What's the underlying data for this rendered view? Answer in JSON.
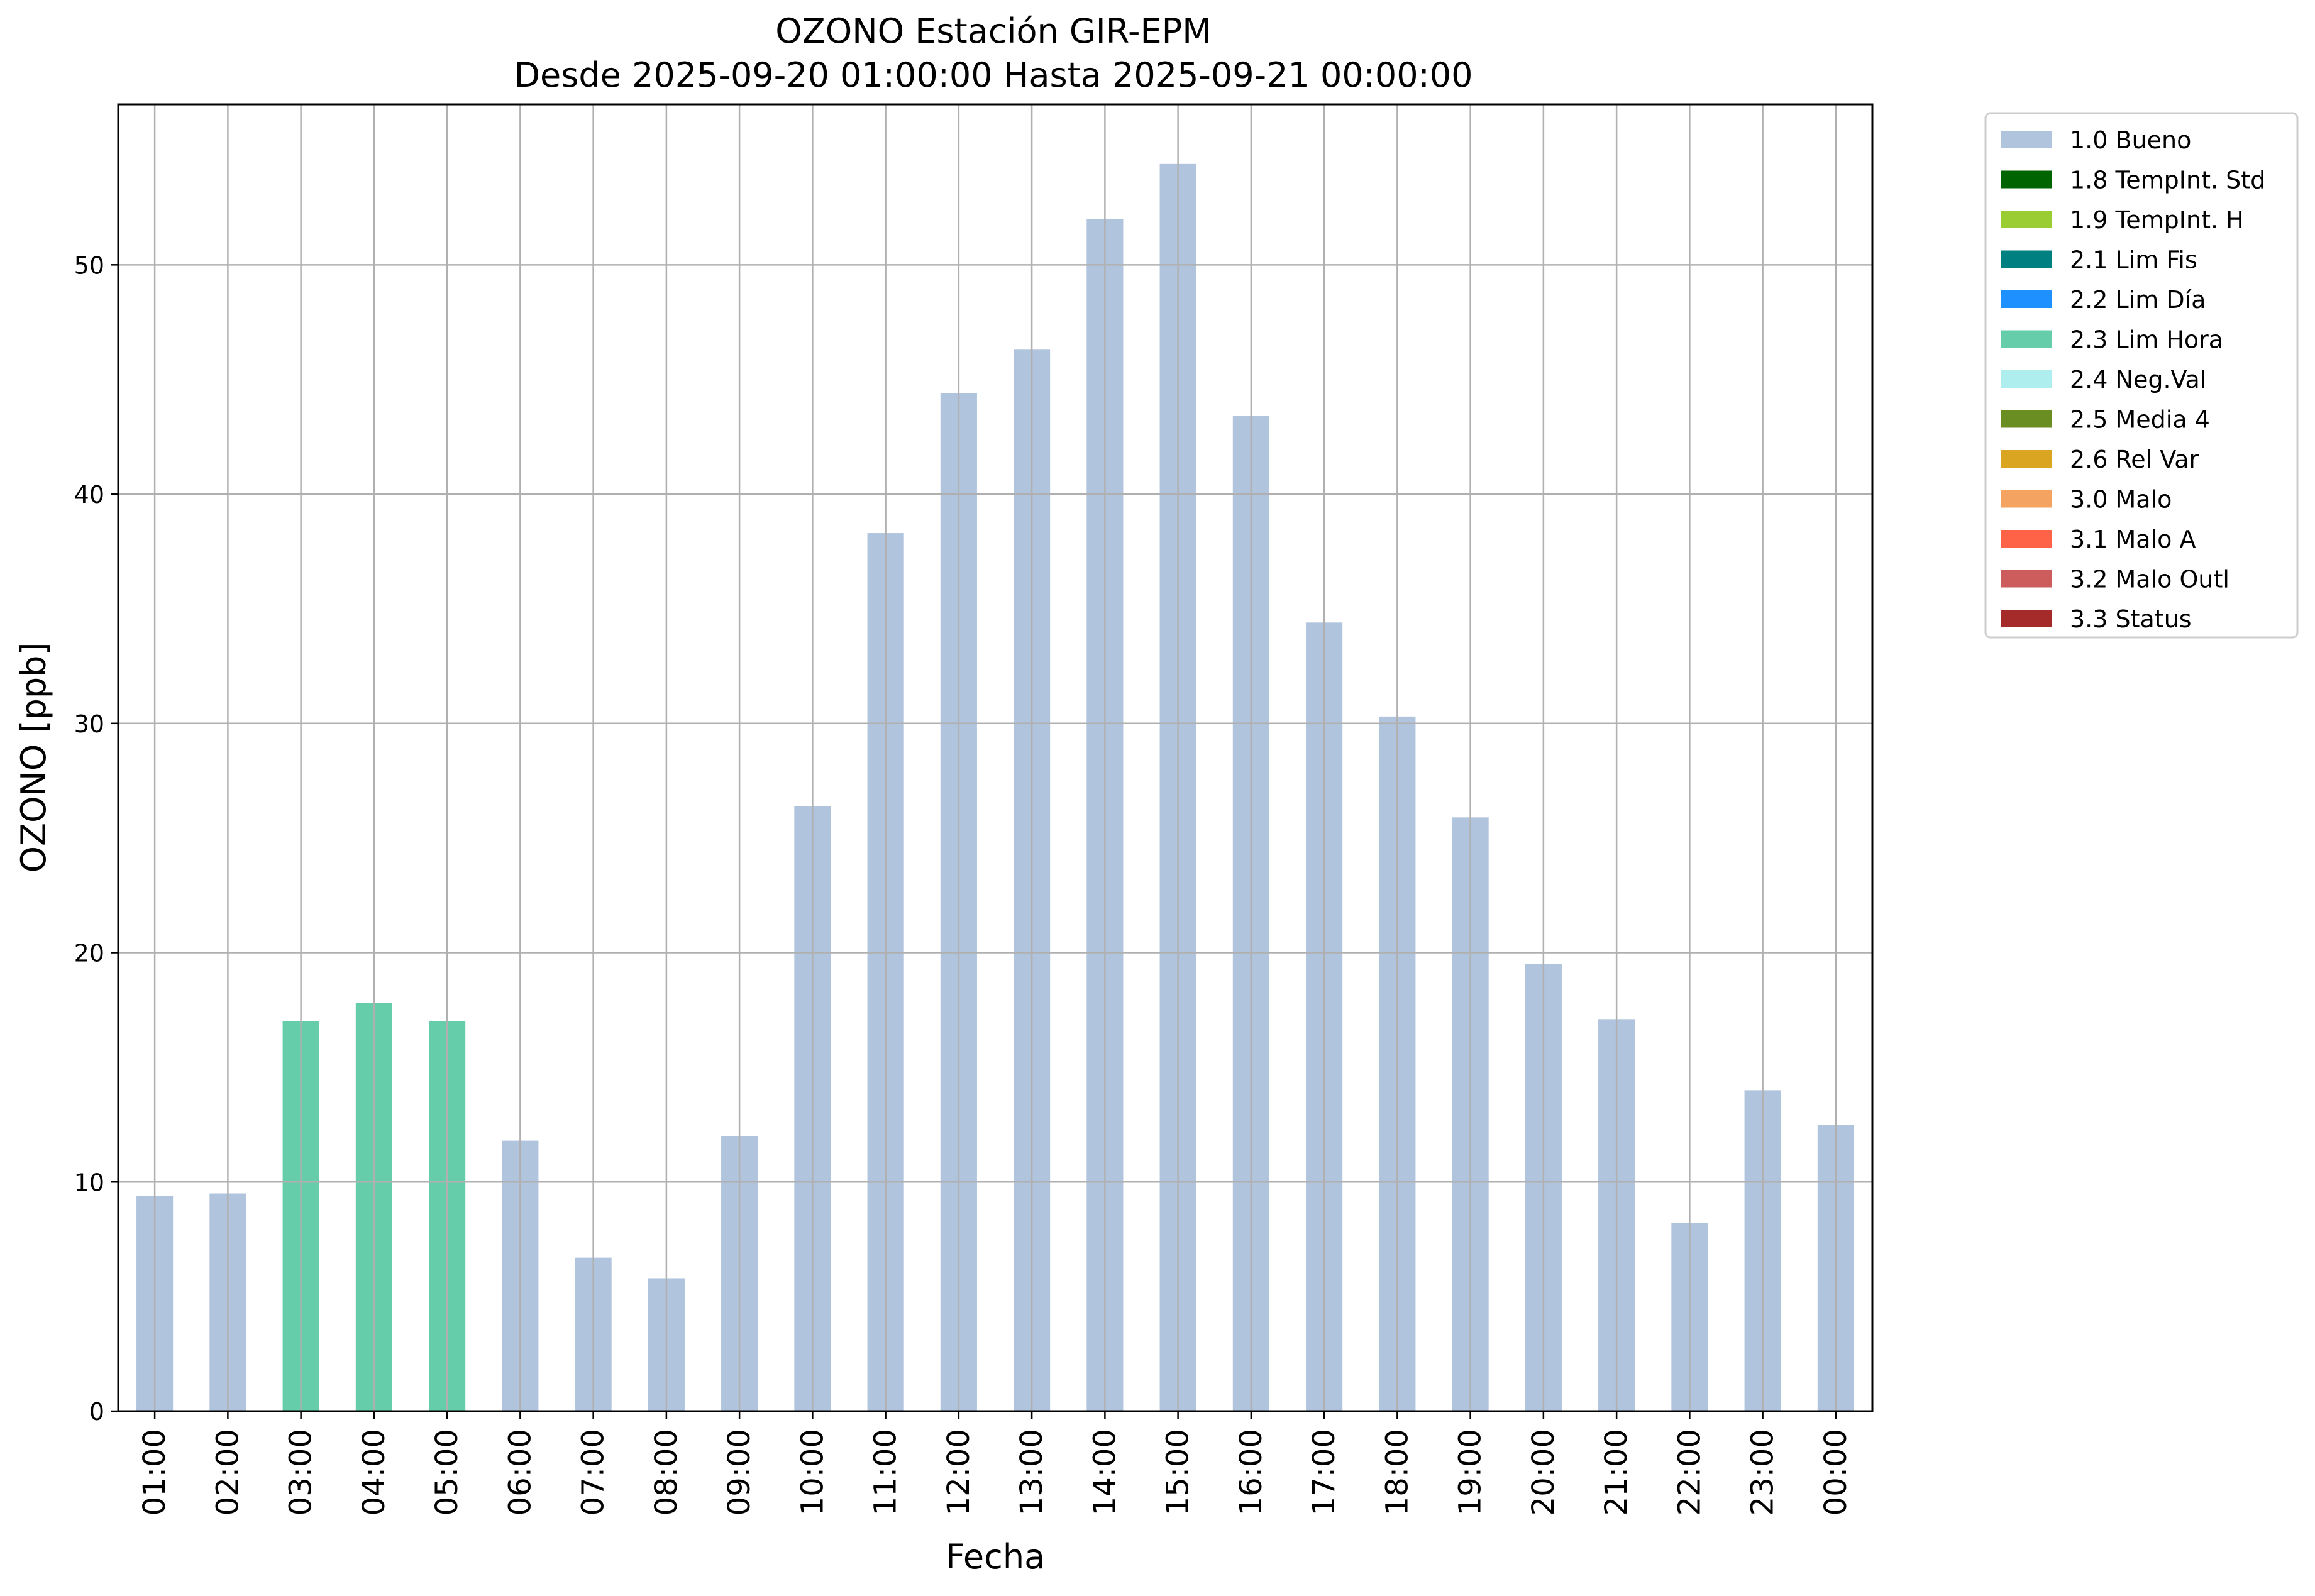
{
  "chart_data": {
    "type": "bar",
    "title": "OZONO Estación GIR-EPM",
    "subtitle": "Desde 2025-09-20 01:00:00 Hasta 2025-09-21 00:00:00",
    "xlabel": "Fecha",
    "ylabel": "OZONO [ppb]",
    "ylim": [
      0,
      57
    ],
    "yticks": [
      0,
      10,
      20,
      30,
      40,
      50
    ],
    "grid": true,
    "legend_position": "outside-top-right",
    "categories": [
      "01:00",
      "02:00",
      "03:00",
      "04:00",
      "05:00",
      "06:00",
      "07:00",
      "08:00",
      "09:00",
      "10:00",
      "11:00",
      "12:00",
      "13:00",
      "14:00",
      "15:00",
      "16:00",
      "17:00",
      "18:00",
      "19:00",
      "20:00",
      "21:00",
      "22:00",
      "23:00",
      "00:00"
    ],
    "values": [
      9.4,
      9.5,
      17.0,
      17.8,
      17.0,
      11.8,
      6.7,
      5.8,
      12.0,
      26.4,
      38.3,
      44.4,
      46.3,
      52.0,
      54.4,
      43.4,
      34.4,
      30.3,
      25.9,
      19.5,
      17.1,
      8.2,
      14.0,
      12.5
    ],
    "flags": [
      "1.0 Bueno",
      "1.0 Bueno",
      "2.3 Lim Hora",
      "2.3 Lim Hora",
      "2.3 Lim Hora",
      "1.0 Bueno",
      "1.0 Bueno",
      "1.0 Bueno",
      "1.0 Bueno",
      "1.0 Bueno",
      "1.0 Bueno",
      "1.0 Bueno",
      "1.0 Bueno",
      "1.0 Bueno",
      "1.0 Bueno",
      "1.0 Bueno",
      "1.0 Bueno",
      "1.0 Bueno",
      "1.0 Bueno",
      "1.0 Bueno",
      "1.0 Bueno",
      "1.0 Bueno",
      "1.0 Bueno",
      "1.0 Bueno"
    ],
    "legend": [
      {
        "label": "1.0 Bueno",
        "color": "#b0c4de"
      },
      {
        "label": "1.8 TempInt. Std",
        "color": "#006400"
      },
      {
        "label": "1.9 TempInt. H",
        "color": "#9acd32"
      },
      {
        "label": "2.1 Lim Fis",
        "color": "#008080"
      },
      {
        "label": "2.2 Lim Día",
        "color": "#1e90ff"
      },
      {
        "label": "2.3 Lim Hora",
        "color": "#66cdaa"
      },
      {
        "label": "2.4 Neg.Val",
        "color": "#afeeee"
      },
      {
        "label": "2.5 Media 4",
        "color": "#6b8e23"
      },
      {
        "label": "2.6 Rel Var",
        "color": "#daa520"
      },
      {
        "label": "3.0 Malo",
        "color": "#f4a460"
      },
      {
        "label": "3.1 Malo A",
        "color": "#ff6347"
      },
      {
        "label": "3.2 Malo Outl",
        "color": "#cd5c5c"
      },
      {
        "label": "3.3 Status",
        "color": "#a52a2a"
      }
    ]
  }
}
